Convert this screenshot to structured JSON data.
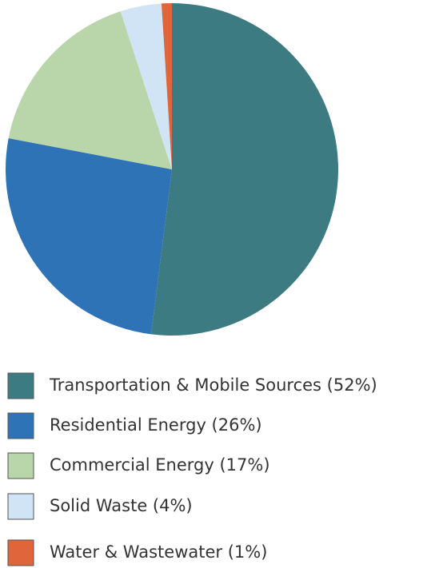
{
  "chart_data": {
    "type": "pie",
    "categories": [
      "Transportation & Mobile Sources (52%)",
      "Residential Energy (26%)",
      "Commercial Energy (17%)",
      "Solid Waste (4%)",
      "Water & Wastewater (1%)"
    ],
    "values": [
      52,
      26,
      17,
      4,
      1
    ],
    "colors": [
      "#3b7b81",
      "#2f73b7",
      "#b9d5aa",
      "#d0e4f6",
      "#e0653b"
    ],
    "legend": "bottom"
  }
}
